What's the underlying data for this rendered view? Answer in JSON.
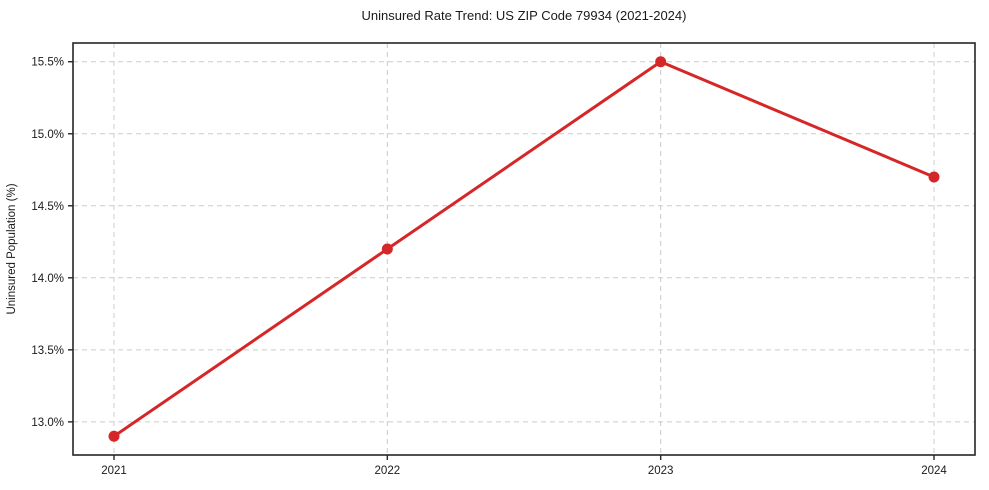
{
  "chart_data": {
    "type": "line",
    "title": "Uninsured Rate Trend: US ZIP Code 79934 (2021-2024)",
    "xlabel": "",
    "ylabel": "Uninsured Population (%)",
    "x": [
      2021,
      2022,
      2023,
      2024
    ],
    "x_tick_labels": [
      "2021",
      "2022",
      "2023",
      "2024"
    ],
    "series": [
      {
        "name": "Uninsured rate",
        "values": [
          12.9,
          14.2,
          15.5,
          14.7
        ]
      }
    ],
    "y_tick_values": [
      13.0,
      13.5,
      14.0,
      14.5,
      15.0,
      15.5
    ],
    "y_tick_labels": [
      "13.0%",
      "13.5%",
      "14.0%",
      "14.5%",
      "15.0%",
      "15.5%"
    ],
    "xlim": [
      2020.85,
      2024.15
    ],
    "ylim": [
      12.77,
      15.63
    ],
    "grid": true,
    "legend": "none",
    "colors": {
      "line": "#d62728",
      "marker": "#d62728",
      "grid": "#cccccc",
      "spine": "#262626",
      "text": "#1a1a1a",
      "background": "#ffffff"
    }
  }
}
